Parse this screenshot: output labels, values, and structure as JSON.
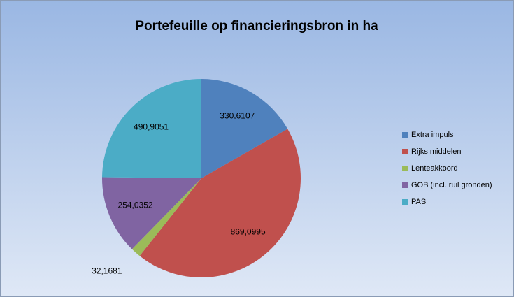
{
  "chart_data": {
    "type": "pie",
    "title": "Portefeuille op financieringsbron in ha",
    "categories": [
      "Extra impuls",
      "Rijks middelen",
      "Lenteakkoord",
      "GOB (incl. ruil gronden)",
      "PAS"
    ],
    "values": [
      330.6107,
      869.0995,
      32.1681,
      254.0352,
      490.9051
    ],
    "value_labels": [
      "330,6107",
      "869,0995",
      "32,1681",
      "254,0352",
      "490,9051"
    ],
    "colors": [
      "#4f81bd",
      "#c0504d",
      "#9bbb59",
      "#8064a2",
      "#4bacc6"
    ],
    "legend": "right"
  }
}
